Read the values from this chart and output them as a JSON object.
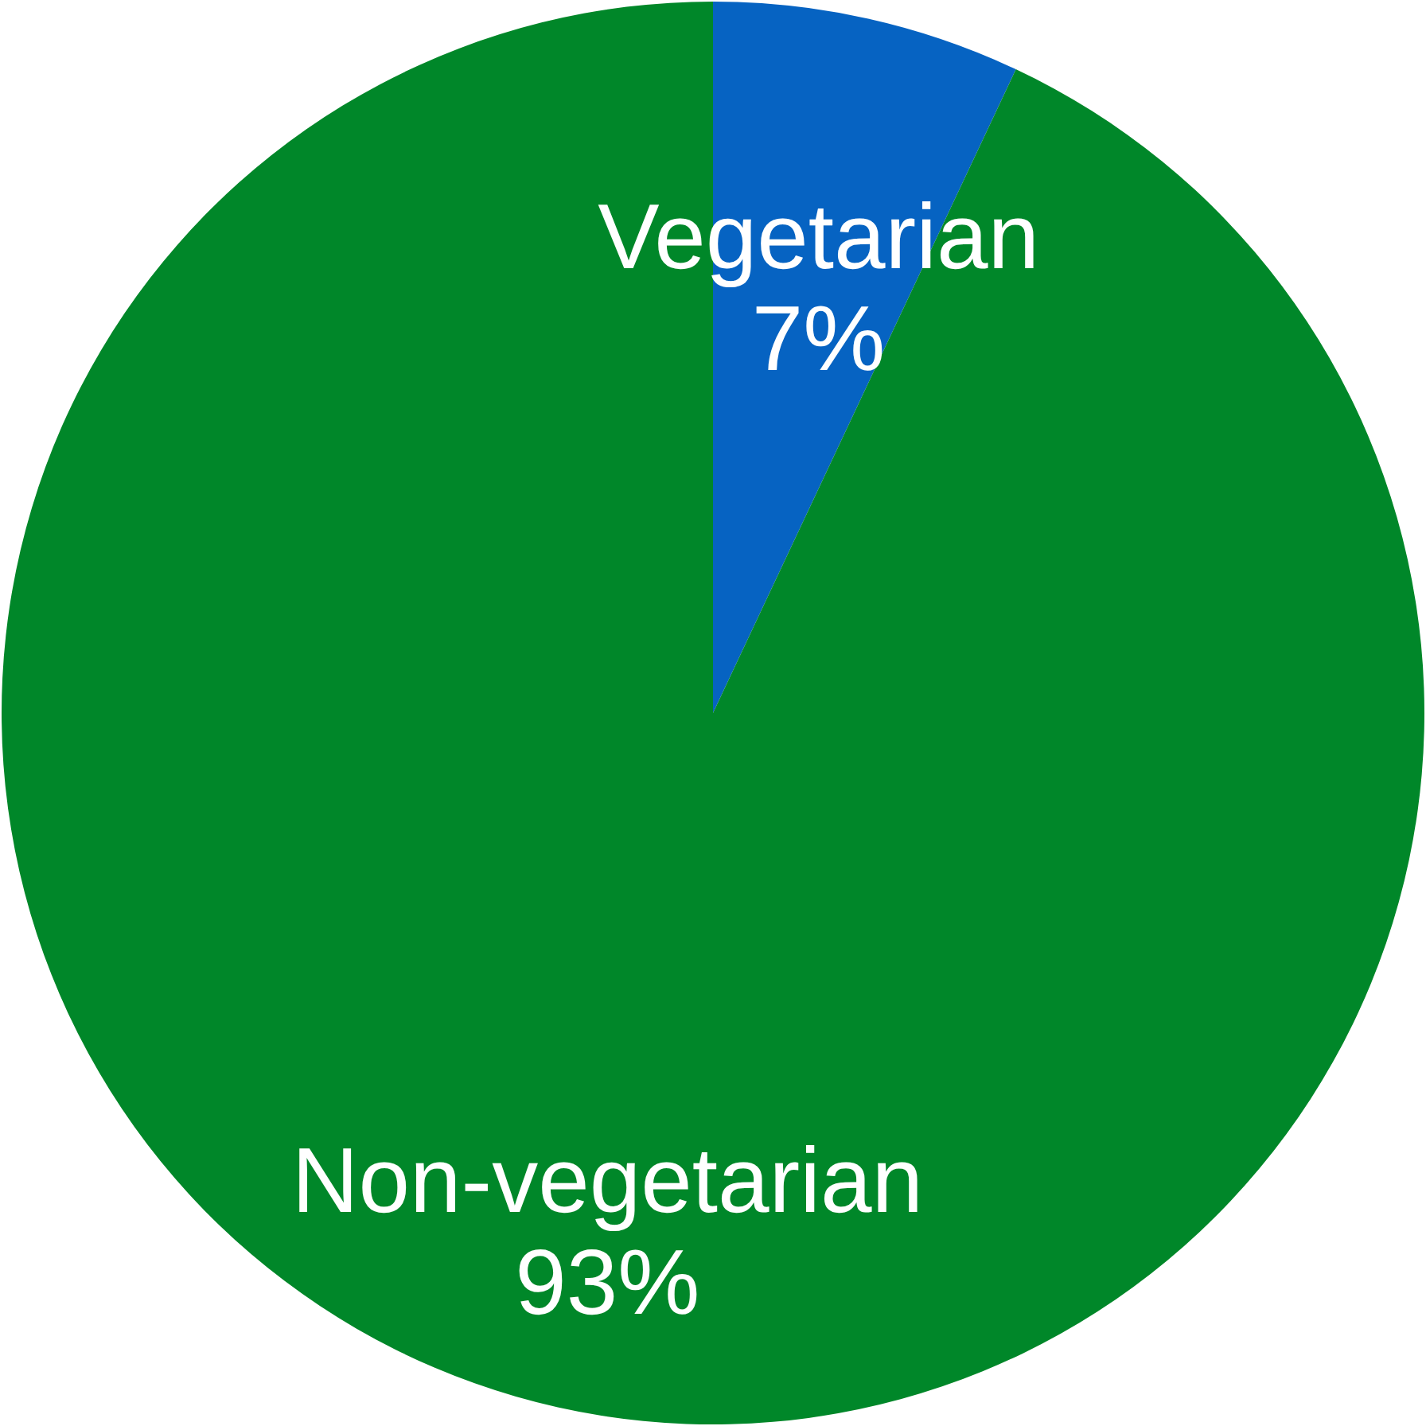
{
  "chart_data": {
    "type": "pie",
    "categories": [
      "Vegetarian",
      "Non-vegetarian"
    ],
    "values": [
      7,
      93
    ],
    "colors": [
      "#0663c2",
      "#008729"
    ],
    "value_labels": [
      "7%",
      "93%"
    ]
  }
}
